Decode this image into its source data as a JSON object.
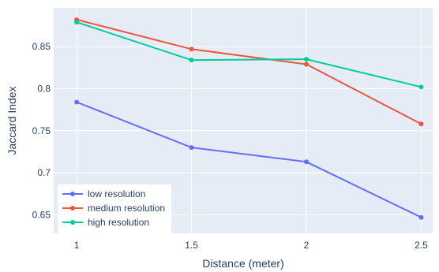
{
  "chart_data": {
    "type": "line",
    "x": [
      1,
      1.5,
      2,
      2.5
    ],
    "xlabel": "Distance (meter)",
    "ylabel": "Jaccard Index",
    "xlim": [
      0.9,
      2.55
    ],
    "ylim": [
      0.628,
      0.896
    ],
    "x_ticks": [
      1,
      1.5,
      2,
      2.5
    ],
    "x_tick_labels": [
      "1",
      "1.5",
      "2",
      "2.5"
    ],
    "y_ticks": [
      0.65,
      0.7,
      0.75,
      0.8,
      0.85
    ],
    "y_tick_labels": [
      "0.65",
      "0.7",
      "0.75",
      "0.8",
      "0.85"
    ],
    "grid": true,
    "legend_position": "bottom-left",
    "series": [
      {
        "name": "low resolution",
        "values": [
          0.784,
          0.73,
          0.713,
          0.647
        ],
        "color": "#636efa"
      },
      {
        "name": "medium resolution",
        "values": [
          0.882,
          0.847,
          0.829,
          0.758
        ],
        "color": "#ef553b"
      },
      {
        "name": "high resolution",
        "values": [
          0.879,
          0.834,
          0.835,
          0.802
        ],
        "color": "#00cc96"
      }
    ],
    "colors": {
      "plot_bg": "#e5ecf6",
      "grid": "#ffffff",
      "text": "#2a3f5f"
    }
  }
}
